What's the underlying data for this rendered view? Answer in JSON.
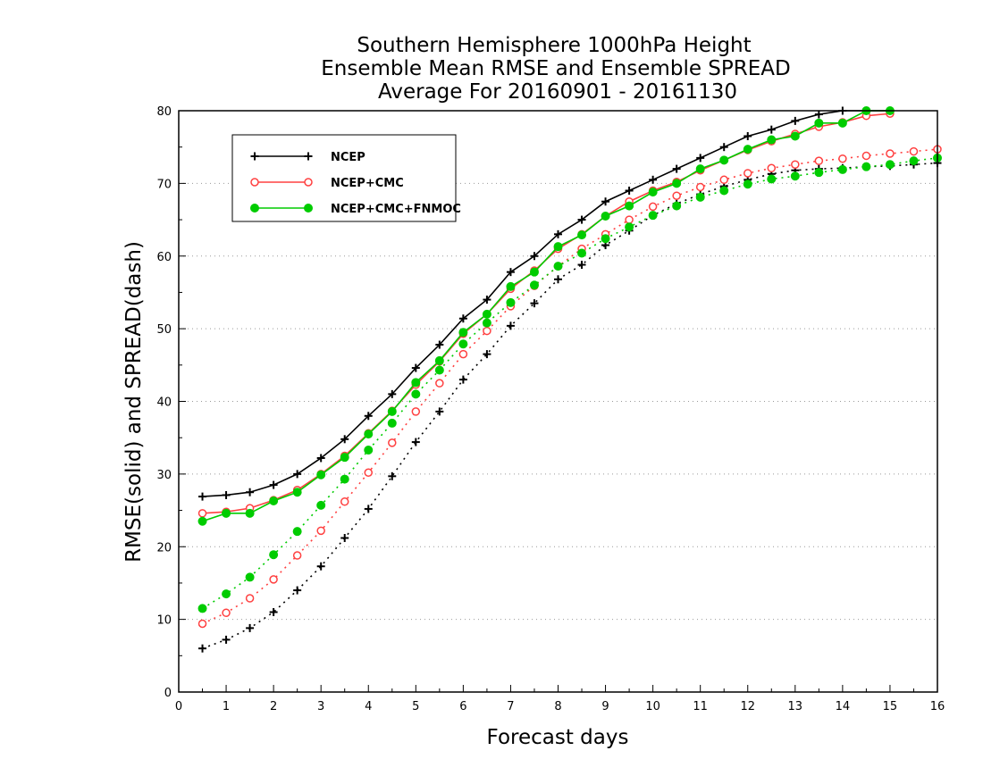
{
  "chart_data": {
    "type": "line",
    "title": [
      "Southern Hemisphere 1000hPa Height",
      "Ensemble Mean RMSE and Ensemble SPREAD",
      "Average For 20160901 - 20161130"
    ],
    "xlabel": "Forecast days",
    "ylabel": "RMSE(solid) and SPREAD(dash)",
    "xlim": [
      0,
      16
    ],
    "ylim": [
      0,
      80
    ],
    "xticks": [
      "0",
      "1",
      "2",
      "3",
      "4",
      "5",
      "6",
      "7",
      "8",
      "9",
      "10",
      "11",
      "12",
      "13",
      "14",
      "15",
      "16"
    ],
    "yticks": [
      "0",
      "10",
      "20",
      "30",
      "40",
      "50",
      "60",
      "70",
      "80"
    ],
    "grid": "horizontal dotted",
    "legend_position": "top-left",
    "x": [
      0.5,
      1,
      1.5,
      2,
      2.5,
      3,
      3.5,
      4,
      4.5,
      5,
      5.5,
      6,
      6.5,
      7,
      7.5,
      8,
      8.5,
      9,
      9.5,
      10,
      10.5,
      11,
      11.5,
      12,
      12.5,
      13,
      13.5,
      14,
      14.5,
      15,
      15.5,
      16
    ],
    "series": [
      {
        "name": "NCEP",
        "metric": "rmse",
        "color": "#000000",
        "marker": "plus",
        "values": [
          26.9,
          27.1,
          27.5,
          28.5,
          30.0,
          32.2,
          34.8,
          38.0,
          41.0,
          44.6,
          47.8,
          51.4,
          54.0,
          57.8,
          60.0,
          63.0,
          65.0,
          67.5,
          69.0,
          70.5,
          72.0,
          73.5,
          75.0,
          76.5,
          77.4,
          78.6,
          79.5,
          80.0,
          80.0,
          80.0,
          null,
          null
        ]
      },
      {
        "name": "NCEP",
        "metric": "spread",
        "color": "#000000",
        "marker": "plus",
        "values": [
          6.0,
          7.2,
          8.8,
          11.0,
          14.0,
          17.3,
          21.2,
          25.2,
          29.7,
          34.4,
          38.6,
          43.0,
          46.5,
          50.4,
          53.5,
          56.8,
          58.8,
          61.5,
          63.5,
          65.6,
          67.2,
          68.5,
          69.6,
          70.5,
          71.3,
          71.8,
          72.0,
          72.1,
          72.3,
          72.4,
          72.6,
          72.8
        ]
      },
      {
        "name": "NCEP+CMC",
        "metric": "rmse",
        "color": "#ff4040",
        "marker": "open-circle",
        "values": [
          24.6,
          24.8,
          25.3,
          26.4,
          27.8,
          30.0,
          32.5,
          35.6,
          38.7,
          42.3,
          45.5,
          49.3,
          52.0,
          55.5,
          58.0,
          61.0,
          63.0,
          65.5,
          67.5,
          69.0,
          70.2,
          71.8,
          73.2,
          74.6,
          75.8,
          76.8,
          77.8,
          78.4,
          79.3,
          79.6,
          null,
          null
        ]
      },
      {
        "name": "NCEP+CMC",
        "metric": "spread",
        "color": "#ff4040",
        "marker": "open-circle",
        "values": [
          9.4,
          10.9,
          12.9,
          15.5,
          18.8,
          22.2,
          26.2,
          30.2,
          34.3,
          38.6,
          42.5,
          46.5,
          49.7,
          53.1,
          55.9,
          58.6,
          61.0,
          63.0,
          65.0,
          66.8,
          68.3,
          69.5,
          70.5,
          71.4,
          72.1,
          72.6,
          73.1,
          73.4,
          73.8,
          74.1,
          74.4,
          74.7
        ]
      },
      {
        "name": "NCEP+CMC+FNMOC",
        "metric": "rmse",
        "color": "#00cc00",
        "marker": "filled-circle",
        "values": [
          23.5,
          24.6,
          24.6,
          26.3,
          27.5,
          29.9,
          32.3,
          35.5,
          38.6,
          42.6,
          45.6,
          49.5,
          52.0,
          55.8,
          57.8,
          61.3,
          62.9,
          65.5,
          66.9,
          68.8,
          70.0,
          72.0,
          73.2,
          74.7,
          76.0,
          76.5,
          78.3,
          78.3,
          80.0,
          80.0,
          null,
          null
        ]
      },
      {
        "name": "NCEP+CMC+FNMOC",
        "metric": "spread",
        "color": "#00cc00",
        "marker": "filled-circle",
        "values": [
          11.5,
          13.5,
          15.8,
          18.9,
          22.1,
          25.7,
          29.3,
          33.3,
          37.0,
          41.0,
          44.3,
          47.9,
          50.8,
          53.6,
          56.0,
          58.6,
          60.4,
          62.4,
          64.0,
          65.6,
          66.9,
          68.1,
          69.0,
          69.9,
          70.6,
          71.0,
          71.5,
          71.9,
          72.3,
          72.6,
          73.1,
          73.5
        ]
      }
    ],
    "legend": [
      "NCEP",
      "NCEP+CMC",
      "NCEP+CMC+FNMOC"
    ]
  }
}
